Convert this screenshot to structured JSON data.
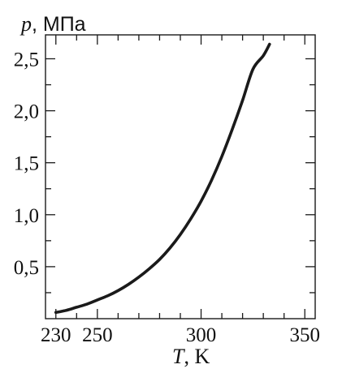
{
  "chart_data": {
    "type": "line",
    "title": "",
    "xlabel": {
      "var": "T",
      "unit": ", K"
    },
    "ylabel": {
      "var": "p",
      "unit": ", МПа"
    },
    "xlim": [
      225,
      355
    ],
    "ylim": [
      0.0,
      2.73
    ],
    "grid": false,
    "legend": "none",
    "x_ticks": [
      {
        "value": 230,
        "label": "230"
      },
      {
        "value": 250,
        "label": "250"
      },
      {
        "value": 300,
        "label": "300"
      },
      {
        "value": 350,
        "label": "350"
      }
    ],
    "x_minor_ticks": [
      240,
      260,
      270,
      280,
      290,
      310,
      320,
      330,
      340
    ],
    "y_ticks": [
      {
        "value": 0.5,
        "label": "0,5"
      },
      {
        "value": 1.0,
        "label": "1,0"
      },
      {
        "value": 1.5,
        "label": "1,5"
      },
      {
        "value": 2.0,
        "label": "2,0"
      },
      {
        "value": 2.5,
        "label": "2,5"
      }
    ],
    "y_minor_ticks": [
      0.25,
      0.75,
      1.25,
      1.75,
      2.25
    ],
    "series": [
      {
        "color": "#1a1a1a",
        "x": [
          230,
          235,
          240,
          245,
          250,
          255,
          260,
          265,
          270,
          275,
          280,
          285,
          290,
          295,
          300,
          305,
          310,
          315,
          320,
          325,
          330,
          333
        ],
        "y": [
          0.06,
          0.08,
          0.11,
          0.14,
          0.18,
          0.22,
          0.27,
          0.33,
          0.4,
          0.48,
          0.57,
          0.68,
          0.81,
          0.96,
          1.13,
          1.33,
          1.56,
          1.82,
          2.1,
          2.4,
          2.53,
          2.64
        ]
      }
    ]
  }
}
